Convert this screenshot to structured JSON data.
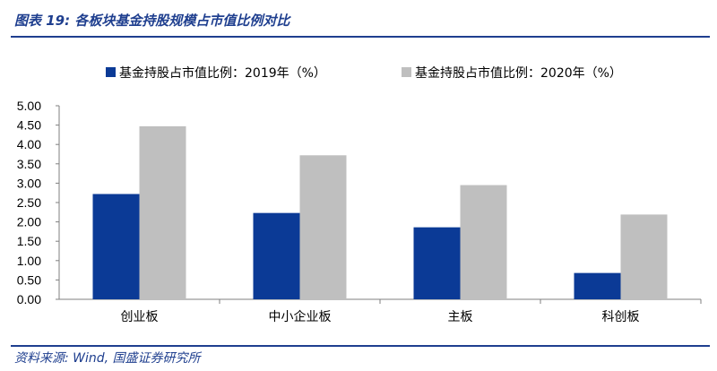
{
  "header": {
    "figure_title": "图表 19:  各板块基金持股规模占市值比例对比"
  },
  "footer": {
    "source": "资料来源:  Wind,  国盛证券研究所"
  },
  "colors": {
    "series_2019": "#0b3a96",
    "series_2020": "#bfbfbf",
    "accent": "#1f3f8f"
  },
  "chart_data": {
    "type": "bar",
    "categories": [
      "创业板",
      "中小企业板",
      "主板",
      "科创板"
    ],
    "series": [
      {
        "name": "基金持股占市值比例：2019年（%）",
        "values": [
          2.72,
          2.23,
          1.86,
          0.68
        ]
      },
      {
        "name": "基金持股占市值比例：2020年（%）",
        "values": [
          4.47,
          3.72,
          2.95,
          2.19
        ]
      }
    ],
    "ylim": [
      0,
      5
    ],
    "yticks": [
      "0.00",
      "0.50",
      "1.00",
      "1.50",
      "2.00",
      "2.50",
      "3.00",
      "3.50",
      "4.00",
      "4.50",
      "5.00"
    ],
    "legend": "top",
    "grid": false
  }
}
